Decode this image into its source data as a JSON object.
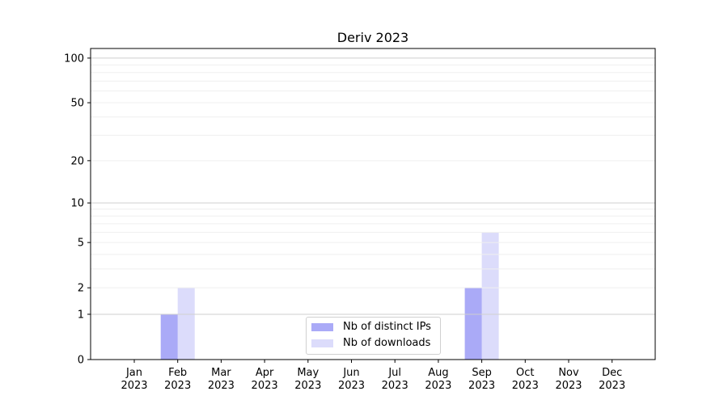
{
  "chart_data": {
    "type": "bar",
    "title": "Deriv 2023",
    "xlabel": "",
    "ylabel": "",
    "y_scale": "log(1+y)",
    "ylim": [
      0,
      116
    ],
    "yticks": [
      0,
      1,
      2,
      5,
      10,
      20,
      50,
      100
    ],
    "grid": true,
    "legend_position": "lower-center",
    "categories": [
      "Jan\n2023",
      "Feb\n2023",
      "Mar\n2023",
      "Apr\n2023",
      "May\n2023",
      "Jun\n2023",
      "Jul\n2023",
      "Aug\n2023",
      "Sep\n2023",
      "Oct\n2023",
      "Nov\n2023",
      "Dec\n2023"
    ],
    "series": [
      {
        "name": "Nb of distinct IPs",
        "color": "#aaaaf7",
        "values": [
          0,
          1,
          0,
          0,
          0,
          0,
          0,
          0,
          2,
          0,
          0,
          0
        ]
      },
      {
        "name": "Nb of downloads",
        "color": "#dcdcfb",
        "values": [
          0,
          2,
          0,
          0,
          0,
          0,
          0,
          0,
          6,
          0,
          0,
          0
        ]
      }
    ]
  }
}
